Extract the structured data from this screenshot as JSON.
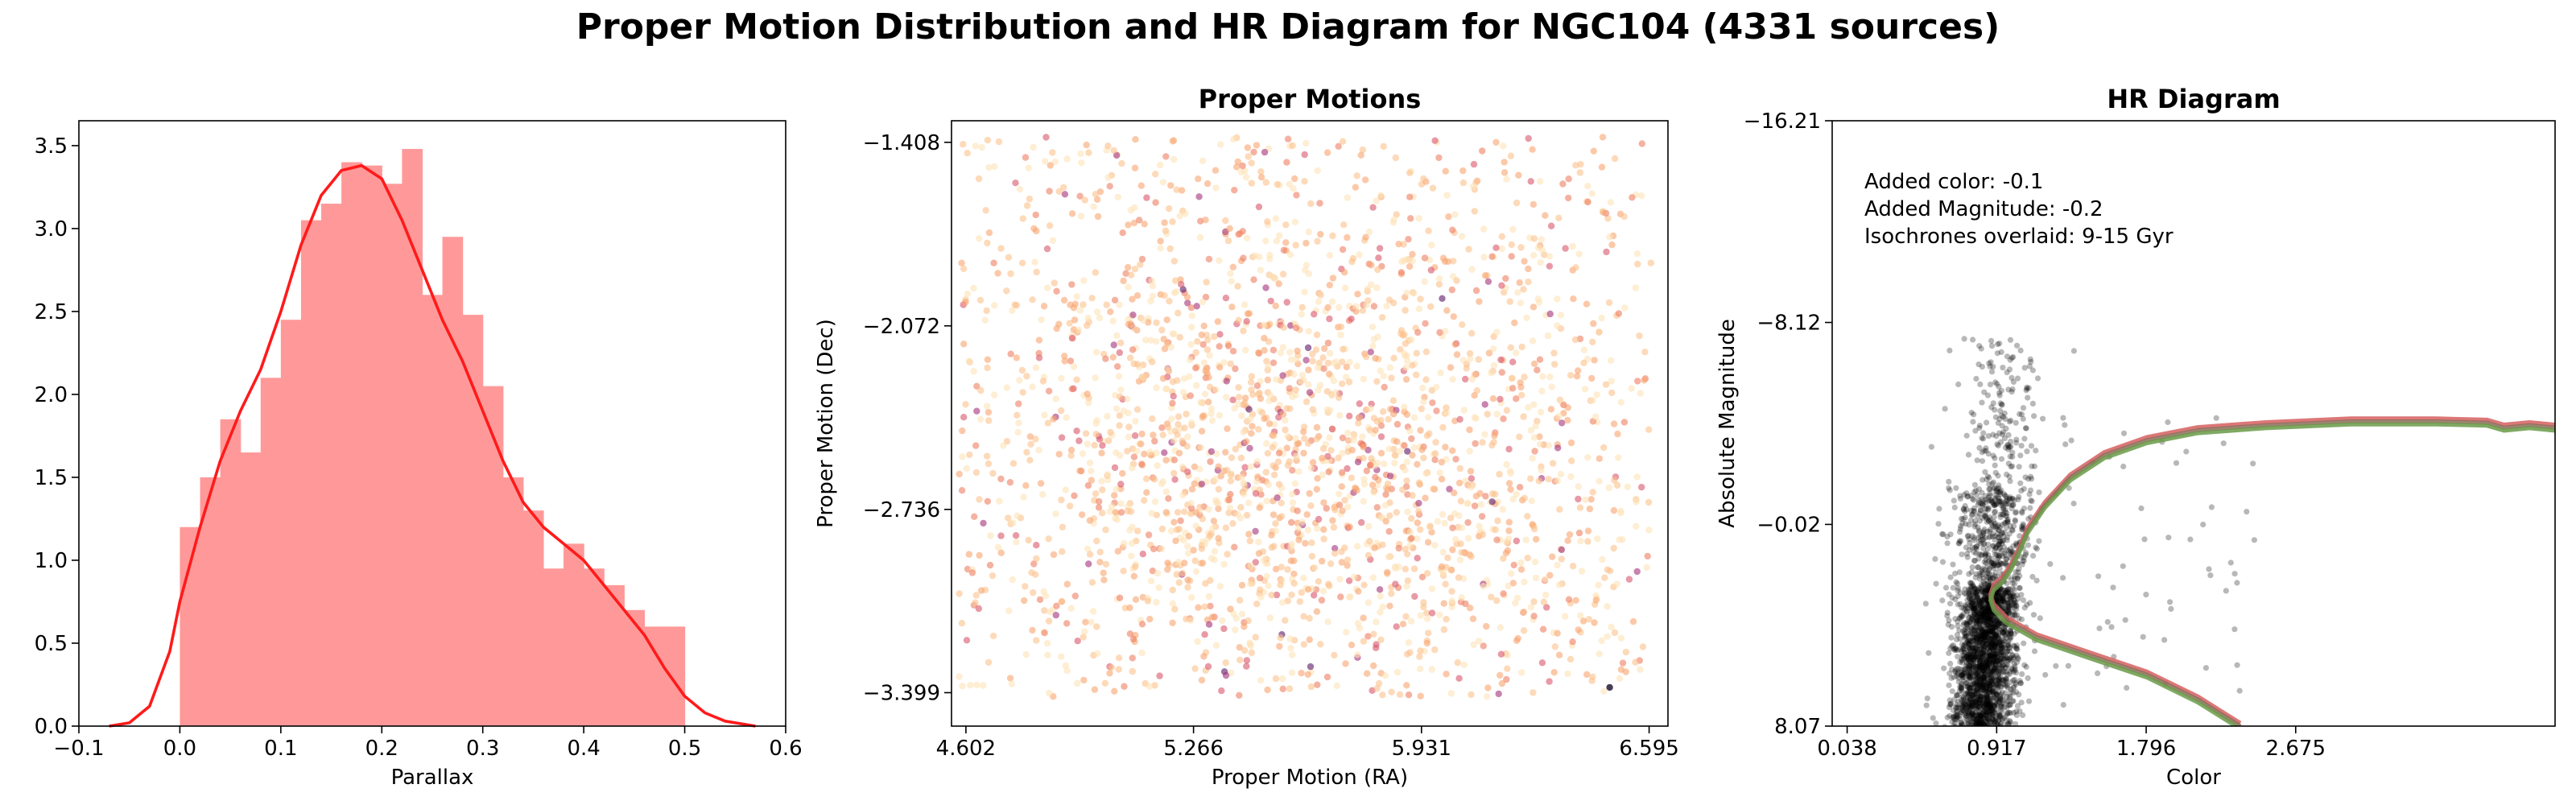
{
  "figure": {
    "title": "Proper Motion Distribution and HR Diagram for NGC104 (4331 sources)"
  },
  "chart_data": [
    {
      "type": "bar",
      "subtype": "histogram-with-kde",
      "title": "",
      "xlabel": "Parallax",
      "ylabel": "",
      "xlim": [
        -0.1,
        0.6
      ],
      "ylim": [
        0,
        3.65
      ],
      "xticks": [
        "−0.1",
        "0.0",
        "0.1",
        "0.2",
        "0.3",
        "0.4",
        "0.5",
        "0.6"
      ],
      "xtick_values": [
        -0.1,
        0.0,
        0.1,
        0.2,
        0.3,
        0.4,
        0.5,
        0.6
      ],
      "yticks": [
        "0.0",
        "0.5",
        "1.0",
        "1.5",
        "2.0",
        "2.5",
        "3.0",
        "3.5"
      ],
      "ytick_values": [
        0,
        0.5,
        1.0,
        1.5,
        2.0,
        2.5,
        3.0,
        3.5
      ],
      "bin_edges": [
        0.0,
        0.02,
        0.04,
        0.06,
        0.08,
        0.1,
        0.12,
        0.14,
        0.16,
        0.18,
        0.2,
        0.22,
        0.24,
        0.26,
        0.28,
        0.3,
        0.32,
        0.34,
        0.36,
        0.38,
        0.4,
        0.42,
        0.44,
        0.46,
        0.48,
        0.5
      ],
      "values": [
        1.2,
        1.5,
        1.85,
        1.65,
        2.1,
        2.45,
        3.05,
        3.15,
        3.4,
        3.38,
        3.27,
        3.48,
        2.6,
        2.95,
        2.48,
        2.05,
        1.5,
        1.3,
        0.95,
        1.1,
        0.95,
        0.85,
        0.7,
        0.6,
        0.6
      ],
      "bar_color": "#ff9999",
      "kde": {
        "color": "#ff1a1a",
        "x": [
          -0.07,
          -0.05,
          -0.03,
          -0.01,
          0.0,
          0.02,
          0.04,
          0.06,
          0.08,
          0.1,
          0.12,
          0.14,
          0.16,
          0.18,
          0.2,
          0.22,
          0.24,
          0.26,
          0.28,
          0.3,
          0.32,
          0.34,
          0.36,
          0.38,
          0.4,
          0.42,
          0.44,
          0.46,
          0.48,
          0.5,
          0.52,
          0.54,
          0.57
        ],
        "y": [
          0.0,
          0.02,
          0.12,
          0.45,
          0.75,
          1.2,
          1.6,
          1.9,
          2.15,
          2.5,
          2.9,
          3.2,
          3.35,
          3.38,
          3.3,
          3.05,
          2.75,
          2.45,
          2.2,
          1.9,
          1.6,
          1.35,
          1.2,
          1.1,
          1.0,
          0.85,
          0.7,
          0.55,
          0.35,
          0.18,
          0.08,
          0.03,
          0.0
        ]
      }
    },
    {
      "type": "scatter",
      "title": "Proper Motions",
      "xlabel": "Proper Motion (RA)",
      "ylabel": "Proper Motion (Dec)",
      "xlim": [
        4.56,
        6.65
      ],
      "ylim": [
        -3.52,
        -1.33
      ],
      "xticks": [
        "4.602",
        "5.266",
        "5.931",
        "6.595"
      ],
      "xtick_values": [
        4.602,
        5.266,
        5.931,
        6.595
      ],
      "yticks": [
        "−1.408",
        "−2.072",
        "−2.736",
        "−3.399"
      ],
      "ytick_values": [
        -1.408,
        -2.072,
        -2.736,
        -3.399
      ],
      "n_points": 2400,
      "distribution": {
        "center": [
          5.55,
          -2.55
        ],
        "spread": [
          0.45,
          0.45
        ]
      },
      "colormap": [
        "#fde2b8",
        "#fcc18c",
        "#f8a56f",
        "#ef7f62",
        "#d8576b",
        "#a4327a",
        "#5c1768",
        "#1a0b2a"
      ],
      "alpha": 0.6
    },
    {
      "type": "scatter",
      "subtype": "hr-diagram",
      "title": "HR Diagram",
      "xlabel": "Color",
      "ylabel": "Absolute Magnitude",
      "xlim": [
        -0.05,
        4.2
      ],
      "ylim": [
        8.07,
        -16.21
      ],
      "xticks": [
        "0.038",
        "0.917",
        "1.796",
        "2.675"
      ],
      "xtick_values": [
        0.038,
        0.917,
        1.796,
        2.675
      ],
      "yticks": [
        "−16.21",
        "−8.12",
        "−0.02",
        "8.07"
      ],
      "ytick_values": [
        -16.21,
        -8.12,
        -0.02,
        8.07
      ],
      "annotations": [
        "Added color: -0.1",
        "Added Magnitude: -0.2",
        "Isochrones overlaid: 9-15 Gyr"
      ],
      "n_points": 2600,
      "point_color": "#000000",
      "point_alpha": 0.28,
      "isochrones": [
        {
          "age_gyr": 9,
          "color": "#d65f5f"
        },
        {
          "age_gyr": 12,
          "color": "#8c6e5a"
        },
        {
          "age_gyr": 15,
          "color": "#6a9a48"
        }
      ],
      "isochrone_curve": {
        "x": [
          2.35,
          2.1,
          1.8,
          1.45,
          1.15,
          0.97,
          0.9,
          0.88,
          0.9,
          0.95,
          1.0,
          1.05,
          1.1,
          1.2,
          1.35,
          1.55,
          1.8,
          2.1,
          2.5,
          3.0,
          3.5,
          3.8,
          3.9,
          4.05,
          4.2
        ],
        "y": [
          8.07,
          7.0,
          6.0,
          5.2,
          4.5,
          3.8,
          3.3,
          2.9,
          2.5,
          2.2,
          1.7,
          1.0,
          0.2,
          -0.8,
          -1.9,
          -2.8,
          -3.4,
          -3.8,
          -4.0,
          -4.15,
          -4.15,
          -4.1,
          -3.9,
          -4.0,
          -3.9
        ]
      }
    }
  ]
}
